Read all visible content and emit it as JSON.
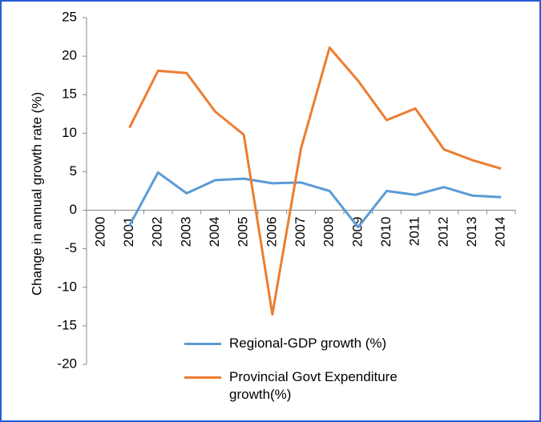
{
  "chart_data": {
    "type": "line",
    "y_label": "Change in annual growth rate  (%)",
    "categories": [
      "2000",
      "2001",
      "2002",
      "2003",
      "2004",
      "2005",
      "2006",
      "2007",
      "2008",
      "2009",
      "2010",
      "2011",
      "2012",
      "2013",
      "2014"
    ],
    "series": [
      {
        "name": "Regional-GDP growth (%)",
        "color": "#5b9bd5",
        "values": [
          null,
          -2.0,
          4.9,
          2.2,
          3.9,
          4.1,
          3.5,
          3.6,
          2.5,
          -2.2,
          2.5,
          2.0,
          3.0,
          1.9,
          1.7
        ]
      },
      {
        "name": "Provincial Govt Expenditure growth(%)",
        "color": "#ed7d31",
        "values": [
          null,
          10.7,
          18.1,
          17.8,
          12.8,
          9.8,
          -13.5,
          8.0,
          21.1,
          16.8,
          11.7,
          13.2,
          7.9,
          6.5,
          5.4
        ]
      }
    ],
    "ylim": [
      -20,
      25
    ],
    "yticks": [
      -20,
      -15,
      -10,
      -5,
      0,
      5,
      10,
      15,
      20,
      25
    ]
  }
}
